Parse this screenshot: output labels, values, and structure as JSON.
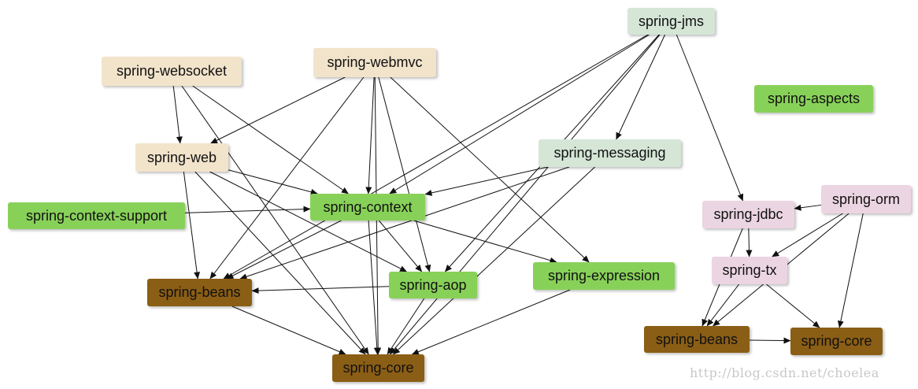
{
  "colors": {
    "green": "#88d159",
    "tan": "#f2e4cb",
    "brown": "#8b5e15",
    "mint": "#d5e6d6",
    "pink": "#ecd5e2",
    "edge": "#111111"
  },
  "nodes": {
    "websocket": {
      "label": "spring-websocket",
      "group": "tan"
    },
    "webmvc": {
      "label": "spring-webmvc",
      "group": "tan"
    },
    "web": {
      "label": "spring-web",
      "group": "tan"
    },
    "context_support": {
      "label": "spring-context-support",
      "group": "green"
    },
    "context": {
      "label": "spring-context",
      "group": "green"
    },
    "beans": {
      "label": "spring-beans",
      "group": "brown"
    },
    "aop": {
      "label": "spring-aop",
      "group": "green"
    },
    "expression": {
      "label": "spring-expression",
      "group": "green"
    },
    "core": {
      "label": "spring-core",
      "group": "brown"
    },
    "jms": {
      "label": "spring-jms",
      "group": "mint"
    },
    "messaging": {
      "label": "spring-messaging",
      "group": "mint"
    },
    "aspects": {
      "label": "spring-aspects",
      "group": "green"
    },
    "jdbc": {
      "label": "spring-jdbc",
      "group": "pink"
    },
    "orm": {
      "label": "spring-orm",
      "group": "pink"
    },
    "tx": {
      "label": "spring-tx",
      "group": "pink"
    },
    "beans2": {
      "label": "spring-beans",
      "group": "brown"
    },
    "core2": {
      "label": "spring-core",
      "group": "brown"
    }
  },
  "edges": [
    [
      "websocket",
      "web"
    ],
    [
      "websocket",
      "context"
    ],
    [
      "websocket",
      "core"
    ],
    [
      "webmvc",
      "web"
    ],
    [
      "webmvc",
      "context"
    ],
    [
      "webmvc",
      "beans"
    ],
    [
      "webmvc",
      "core"
    ],
    [
      "webmvc",
      "aop"
    ],
    [
      "webmvc",
      "expression"
    ],
    [
      "web",
      "context"
    ],
    [
      "web",
      "beans"
    ],
    [
      "web",
      "core"
    ],
    [
      "web",
      "aop"
    ],
    [
      "context_support",
      "context"
    ],
    [
      "context",
      "beans"
    ],
    [
      "context",
      "core"
    ],
    [
      "context",
      "aop"
    ],
    [
      "context",
      "expression"
    ],
    [
      "aop",
      "beans"
    ],
    [
      "aop",
      "core"
    ],
    [
      "beans",
      "core"
    ],
    [
      "expression",
      "core"
    ],
    [
      "jms",
      "messaging"
    ],
    [
      "jms",
      "context"
    ],
    [
      "jms",
      "beans"
    ],
    [
      "jms",
      "aop"
    ],
    [
      "jms",
      "core"
    ],
    [
      "jms",
      "jdbc"
    ],
    [
      "messaging",
      "context"
    ],
    [
      "messaging",
      "beans"
    ],
    [
      "messaging",
      "core"
    ],
    [
      "jdbc",
      "tx"
    ],
    [
      "jdbc",
      "beans2"
    ],
    [
      "orm",
      "jdbc"
    ],
    [
      "orm",
      "tx"
    ],
    [
      "orm",
      "beans2"
    ],
    [
      "orm",
      "core2"
    ],
    [
      "tx",
      "beans2"
    ],
    [
      "tx",
      "core2"
    ],
    [
      "beans2",
      "core2"
    ]
  ],
  "watermark": "http://blog.csdn.net/choelea"
}
